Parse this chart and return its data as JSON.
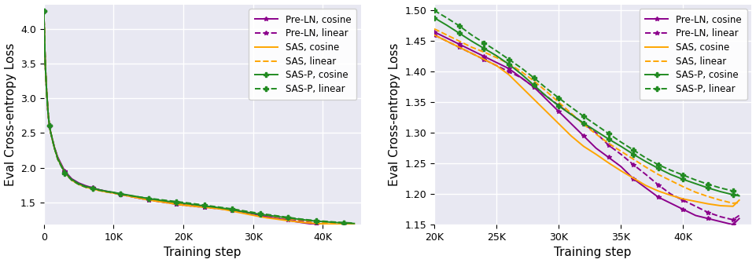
{
  "series": {
    "pre_ln_cosine": {
      "label": "Pre-LN, cosine",
      "color": "#8B008B",
      "linestyle": "solid",
      "marker": "*",
      "steps": [
        0,
        200,
        400,
        600,
        800,
        1000,
        1500,
        2000,
        3000,
        4000,
        5000,
        6000,
        7000,
        8000,
        9000,
        10000,
        11000,
        12000,
        13000,
        14000,
        15000,
        16000,
        17000,
        18000,
        19000,
        20000,
        21000,
        22000,
        23000,
        24000,
        25000,
        26000,
        27000,
        28000,
        29000,
        30000,
        31000,
        32000,
        33000,
        34000,
        35000,
        36000,
        37000,
        38000,
        39000,
        40000,
        41000,
        42000,
        43000,
        44000,
        44500
      ],
      "values": [
        4.25,
        3.5,
        3.1,
        2.8,
        2.6,
        2.5,
        2.3,
        2.15,
        1.95,
        1.84,
        1.78,
        1.74,
        1.71,
        1.68,
        1.66,
        1.64,
        1.62,
        1.6,
        1.575,
        1.555,
        1.54,
        1.525,
        1.51,
        1.495,
        1.48,
        1.465,
        1.455,
        1.445,
        1.435,
        1.425,
        1.415,
        1.405,
        1.39,
        1.375,
        1.355,
        1.335,
        1.315,
        1.295,
        1.275,
        1.26,
        1.245,
        1.225,
        1.21,
        1.195,
        1.185,
        1.175,
        1.165,
        1.16,
        1.155,
        1.15,
        1.16
      ]
    },
    "pre_ln_linear": {
      "label": "Pre-LN, linear",
      "color": "#8B008B",
      "linestyle": "dashed",
      "marker": "*",
      "steps": [
        0,
        200,
        400,
        600,
        800,
        1000,
        1500,
        2000,
        3000,
        4000,
        5000,
        6000,
        7000,
        8000,
        9000,
        10000,
        11000,
        12000,
        13000,
        14000,
        15000,
        16000,
        17000,
        18000,
        19000,
        20000,
        21000,
        22000,
        23000,
        24000,
        25000,
        26000,
        27000,
        28000,
        29000,
        30000,
        31000,
        32000,
        33000,
        34000,
        35000,
        36000,
        37000,
        38000,
        39000,
        40000,
        41000,
        42000,
        43000,
        44000,
        44500
      ],
      "values": [
        4.25,
        3.5,
        3.1,
        2.8,
        2.6,
        2.5,
        2.3,
        2.14,
        1.94,
        1.83,
        1.77,
        1.73,
        1.71,
        1.68,
        1.655,
        1.635,
        1.615,
        1.595,
        1.575,
        1.555,
        1.535,
        1.52,
        1.505,
        1.49,
        1.475,
        1.46,
        1.45,
        1.44,
        1.43,
        1.42,
        1.41,
        1.4,
        1.39,
        1.375,
        1.36,
        1.345,
        1.33,
        1.315,
        1.3,
        1.28,
        1.265,
        1.248,
        1.232,
        1.215,
        1.2,
        1.19,
        1.18,
        1.17,
        1.163,
        1.158,
        1.165
      ]
    },
    "sas_cosine": {
      "label": "SAS, cosine",
      "color": "#FFA500",
      "linestyle": "solid",
      "marker": null,
      "steps": [
        0,
        200,
        400,
        600,
        800,
        1000,
        1500,
        2000,
        3000,
        4000,
        5000,
        6000,
        7000,
        8000,
        9000,
        10000,
        11000,
        12000,
        13000,
        14000,
        15000,
        16000,
        17000,
        18000,
        19000,
        20000,
        21000,
        22000,
        23000,
        24000,
        25000,
        26000,
        27000,
        28000,
        29000,
        30000,
        31000,
        32000,
        33000,
        34000,
        35000,
        36000,
        37000,
        38000,
        39000,
        40000,
        41000,
        42000,
        43000,
        44000,
        44500
      ],
      "values": [
        4.25,
        3.5,
        3.1,
        2.8,
        2.6,
        2.5,
        2.29,
        2.13,
        1.93,
        1.82,
        1.76,
        1.72,
        1.695,
        1.67,
        1.65,
        1.635,
        1.615,
        1.595,
        1.575,
        1.555,
        1.535,
        1.52,
        1.505,
        1.49,
        1.475,
        1.46,
        1.45,
        1.44,
        1.43,
        1.42,
        1.41,
        1.395,
        1.375,
        1.355,
        1.335,
        1.315,
        1.295,
        1.278,
        1.265,
        1.251,
        1.238,
        1.226,
        1.214,
        1.205,
        1.198,
        1.192,
        1.188,
        1.184,
        1.181,
        1.18,
        1.19
      ]
    },
    "sas_linear": {
      "label": "SAS, linear",
      "color": "#FFA500",
      "linestyle": "dashed",
      "marker": null,
      "steps": [
        0,
        200,
        400,
        600,
        800,
        1000,
        1500,
        2000,
        3000,
        4000,
        5000,
        6000,
        7000,
        8000,
        9000,
        10000,
        11000,
        12000,
        13000,
        14000,
        15000,
        16000,
        17000,
        18000,
        19000,
        20000,
        21000,
        22000,
        23000,
        24000,
        25000,
        26000,
        27000,
        28000,
        29000,
        30000,
        31000,
        32000,
        33000,
        34000,
        35000,
        36000,
        37000,
        38000,
        39000,
        40000,
        41000,
        42000,
        43000,
        44000,
        44500
      ],
      "values": [
        4.25,
        3.5,
        3.1,
        2.8,
        2.6,
        2.5,
        2.29,
        2.12,
        1.93,
        1.82,
        1.76,
        1.72,
        1.695,
        1.67,
        1.65,
        1.635,
        1.615,
        1.595,
        1.575,
        1.56,
        1.545,
        1.53,
        1.515,
        1.5,
        1.485,
        1.47,
        1.46,
        1.45,
        1.44,
        1.432,
        1.423,
        1.413,
        1.4,
        1.385,
        1.368,
        1.35,
        1.332,
        1.314,
        1.298,
        1.283,
        1.27,
        1.257,
        1.244,
        1.232,
        1.222,
        1.212,
        1.203,
        1.196,
        1.19,
        1.185,
        1.186
      ]
    },
    "sasp_cosine": {
      "label": "SAS-P, cosine",
      "color": "#228B22",
      "linestyle": "solid",
      "marker": "P",
      "steps": [
        0,
        200,
        400,
        600,
        800,
        1000,
        1500,
        2000,
        3000,
        4000,
        5000,
        6000,
        7000,
        8000,
        9000,
        10000,
        11000,
        12000,
        13000,
        14000,
        15000,
        16000,
        17000,
        18000,
        19000,
        20000,
        21000,
        22000,
        23000,
        24000,
        25000,
        26000,
        27000,
        28000,
        29000,
        30000,
        31000,
        32000,
        33000,
        34000,
        35000,
        36000,
        37000,
        38000,
        39000,
        40000,
        41000,
        42000,
        43000,
        44000,
        44500
      ],
      "values": [
        4.25,
        3.5,
        3.1,
        2.8,
        2.6,
        2.5,
        2.29,
        2.13,
        1.93,
        1.83,
        1.77,
        1.73,
        1.705,
        1.68,
        1.66,
        1.645,
        1.625,
        1.608,
        1.59,
        1.573,
        1.556,
        1.541,
        1.526,
        1.513,
        1.5,
        1.488,
        1.476,
        1.463,
        1.45,
        1.438,
        1.426,
        1.412,
        1.396,
        1.378,
        1.36,
        1.344,
        1.33,
        1.316,
        1.303,
        1.29,
        1.278,
        1.265,
        1.253,
        1.242,
        1.232,
        1.224,
        1.217,
        1.21,
        1.204,
        1.199,
        1.197
      ]
    },
    "sasp_linear": {
      "label": "SAS-P, linear",
      "color": "#228B22",
      "linestyle": "dashed",
      "marker": "P",
      "steps": [
        0,
        200,
        400,
        600,
        800,
        1000,
        1500,
        2000,
        3000,
        4000,
        5000,
        6000,
        7000,
        8000,
        9000,
        10000,
        11000,
        12000,
        13000,
        14000,
        15000,
        16000,
        17000,
        18000,
        19000,
        20000,
        21000,
        22000,
        23000,
        24000,
        25000,
        26000,
        27000,
        28000,
        29000,
        30000,
        31000,
        32000,
        33000,
        34000,
        35000,
        36000,
        37000,
        38000,
        39000,
        40000,
        41000,
        42000,
        43000,
        44000,
        44500
      ],
      "values": [
        4.25,
        3.5,
        3.1,
        2.8,
        2.6,
        2.5,
        2.29,
        2.12,
        1.92,
        1.82,
        1.76,
        1.72,
        1.7,
        1.675,
        1.655,
        1.64,
        1.62,
        1.603,
        1.588,
        1.573,
        1.56,
        1.548,
        1.536,
        1.524,
        1.512,
        1.5,
        1.488,
        1.475,
        1.46,
        1.447,
        1.434,
        1.42,
        1.406,
        1.39,
        1.373,
        1.357,
        1.342,
        1.327,
        1.313,
        1.299,
        1.285,
        1.272,
        1.259,
        1.248,
        1.239,
        1.231,
        1.223,
        1.216,
        1.21,
        1.205,
        1.197
      ]
    }
  },
  "left_plot": {
    "xlim": [
      0,
      45500
    ],
    "ylim": [
      1.18,
      4.35
    ],
    "xlabel": "Training step",
    "ylabel": "Eval Cross-entropy Loss",
    "xticks": [
      0,
      10000,
      20000,
      30000,
      40000
    ],
    "xtick_labels": [
      "0",
      "10K",
      "20K",
      "30K",
      "40K"
    ],
    "yticks": [
      1.5,
      2.0,
      2.5,
      3.0,
      3.5,
      4.0
    ]
  },
  "right_plot": {
    "xlim": [
      20000,
      45500
    ],
    "ylim": [
      1.15,
      1.51
    ],
    "xlabel": "Training step",
    "ylabel": "Eval Cross-entropy Loss",
    "xticks": [
      20000,
      25000,
      30000,
      35000,
      40000
    ],
    "xtick_labels": [
      "20K",
      "25K",
      "30K",
      "35K",
      "40K"
    ],
    "yticks": [
      1.15,
      1.2,
      1.25,
      1.3,
      1.35,
      1.4,
      1.45,
      1.5
    ]
  },
  "background_color": "#e8e8f2",
  "grid_color": "white",
  "legend_fontsize": 8.5,
  "axis_label_fontsize": 11,
  "tick_fontsize": 9,
  "marker_size": 4,
  "linewidth": 1.4
}
